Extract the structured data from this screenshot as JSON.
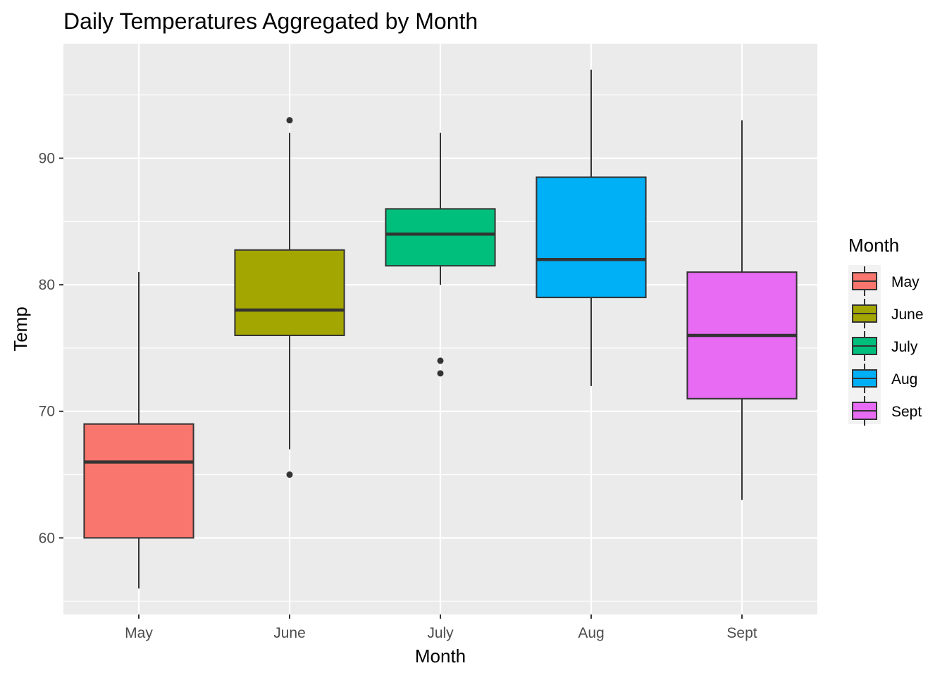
{
  "chart_data": {
    "type": "box",
    "title": "Daily Temperatures Aggregated by Month",
    "xlabel": "Month",
    "ylabel": "Temp",
    "categories": [
      "May",
      "June",
      "July",
      "Aug",
      "Sept"
    ],
    "ylim": [
      53.95,
      99.05
    ],
    "yticks": [
      60,
      70,
      80,
      90
    ],
    "grid": true,
    "legend": {
      "title": "Month",
      "position": "right"
    },
    "colors": [
      "#F8766D",
      "#A3A500",
      "#00BF7D",
      "#00B0F6",
      "#E76BF3"
    ],
    "boxes": [
      {
        "name": "May",
        "lower_whisker": 56,
        "q1": 60,
        "median": 66,
        "q3": 69,
        "upper_whisker": 81,
        "outliers": []
      },
      {
        "name": "June",
        "lower_whisker": 67,
        "q1": 76,
        "median": 78,
        "q3": 82.75,
        "upper_whisker": 92,
        "outliers": [
          93,
          65
        ]
      },
      {
        "name": "July",
        "lower_whisker": 80,
        "q1": 81.5,
        "median": 84,
        "q3": 86,
        "upper_whisker": 92,
        "outliers": [
          74,
          73
        ]
      },
      {
        "name": "Aug",
        "lower_whisker": 72,
        "q1": 79,
        "median": 82,
        "q3": 88.5,
        "upper_whisker": 97,
        "outliers": []
      },
      {
        "name": "Sept",
        "lower_whisker": 63,
        "q1": 71,
        "median": 76,
        "q3": 81,
        "upper_whisker": 93,
        "outliers": []
      }
    ]
  }
}
